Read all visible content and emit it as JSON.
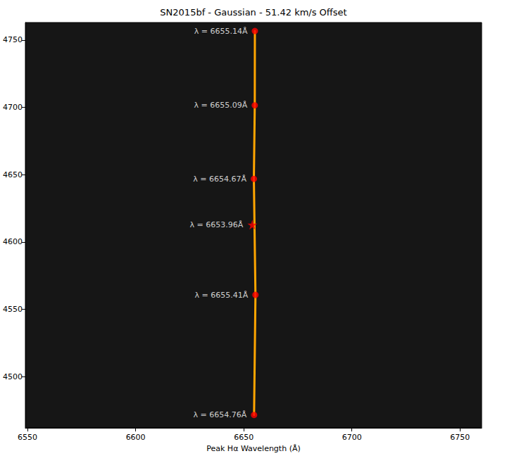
{
  "chart_data": {
    "type": "scatter",
    "title": "SN2015bf - Gaussian - 51.42 km/s Offset",
    "x_label": "Peak Hα Wavelength (Å)",
    "xlim": [
      6549,
      6760
    ],
    "xticks": [
      6550,
      6600,
      6650,
      6700,
      6750
    ],
    "ylim": [
      4462,
      4763
    ],
    "yticks": [
      4500,
      4550,
      4600,
      4650,
      4700,
      4750
    ],
    "grid": false,
    "series": [
      {
        "type": "line",
        "color": "#ffa500",
        "line_style": "solid",
        "x": [
          6655.14,
          6655.09,
          6654.67,
          6655.41,
          6654.76
        ],
        "values": [
          4756.7,
          4701.5,
          4646.9,
          4560.8,
          4471.6
        ]
      },
      {
        "type": "scatter",
        "color": "#ff0000",
        "marker": "circle",
        "x": [
          6655.14,
          6655.09,
          6654.67,
          6655.41,
          6654.76
        ],
        "values": [
          4756.7,
          4701.5,
          4646.9,
          4560.8,
          4471.6
        ],
        "value_labels": [
          "λ = 6655.14Å",
          "λ = 6655.09Å",
          "λ = 6654.67Å",
          "λ = 6655.41Å",
          "λ = 6654.76Å"
        ]
      },
      {
        "type": "scatter",
        "color": "#ff0000",
        "marker": "star",
        "x": [
          6653.96
        ],
        "values": [
          4612.9
        ],
        "value_labels": [
          "λ = 6653.96Å"
        ]
      }
    ]
  }
}
